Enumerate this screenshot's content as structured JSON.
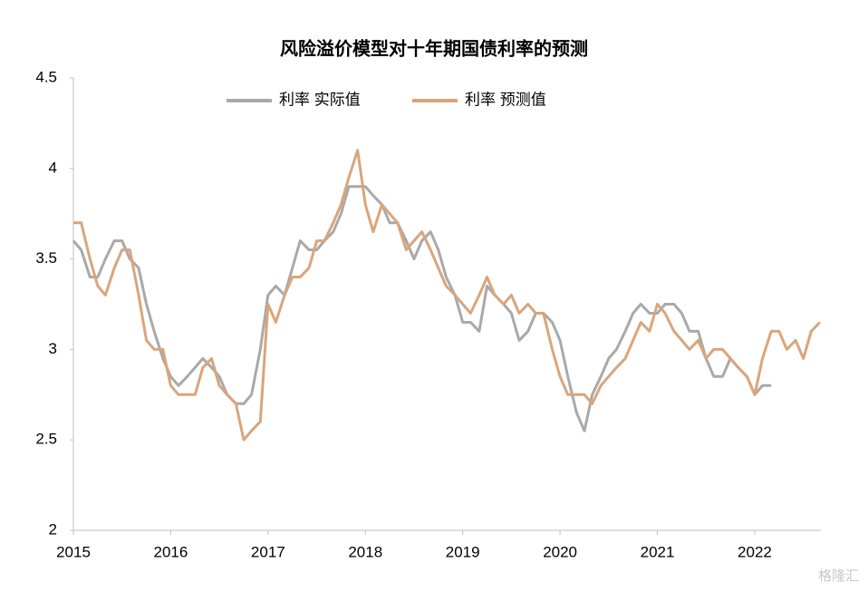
{
  "chart_data": {
    "type": "line",
    "title": "风险溢价模型对十年期国债利率的预测",
    "xlim": [
      2015,
      2022.68
    ],
    "xticks": [
      2015,
      2016,
      2017,
      2018,
      2019,
      2020,
      2021,
      2022
    ],
    "ylim": [
      2,
      4.5
    ],
    "yticks": [
      2,
      {
        "value": 2.5,
        "label": "2.5"
      },
      3,
      {
        "value": 3.5,
        "label": "3.5"
      },
      4,
      {
        "value": 4.5,
        "label": "4.5"
      }
    ],
    "grid": false,
    "legend": "top",
    "watermark": "格隆汇",
    "series": [
      {
        "name": "利率 实际值",
        "color": "#a9a9a9",
        "x": [
          2015,
          2015.08,
          2015.17,
          2015.25,
          2015.33,
          2015.42,
          2015.5,
          2015.58,
          2015.67,
          2015.75,
          2015.83,
          2015.92,
          2016,
          2016.08,
          2016.17,
          2016.25,
          2016.33,
          2016.42,
          2016.5,
          2016.58,
          2016.67,
          2016.75,
          2016.83,
          2016.92,
          2017,
          2017.08,
          2017.17,
          2017.25,
          2017.33,
          2017.42,
          2017.5,
          2017.58,
          2017.67,
          2017.75,
          2017.83,
          2017.92,
          2018,
          2018.08,
          2018.17,
          2018.25,
          2018.33,
          2018.42,
          2018.5,
          2018.58,
          2018.67,
          2018.75,
          2018.83,
          2018.92,
          2019,
          2019.08,
          2019.17,
          2019.25,
          2019.33,
          2019.42,
          2019.5,
          2019.58,
          2019.67,
          2019.75,
          2019.83,
          2019.92,
          2020,
          2020.08,
          2020.17,
          2020.25,
          2020.33,
          2020.42,
          2020.5,
          2020.58,
          2020.67,
          2020.75,
          2020.83,
          2020.92,
          2021,
          2021.08,
          2021.17,
          2021.25,
          2021.33,
          2021.42,
          2021.5,
          2021.58,
          2021.67,
          2021.75,
          2021.83,
          2021.92,
          2022,
          2022.08,
          2022.17
        ],
        "values": [
          3.6,
          3.55,
          3.4,
          3.4,
          3.5,
          3.6,
          3.6,
          3.5,
          3.45,
          3.25,
          3.1,
          2.95,
          2.85,
          2.8,
          2.85,
          2.9,
          2.95,
          2.9,
          2.85,
          2.75,
          2.7,
          2.7,
          2.75,
          3.0,
          3.3,
          3.35,
          3.3,
          3.45,
          3.6,
          3.55,
          3.55,
          3.6,
          3.65,
          3.75,
          3.9,
          3.9,
          3.9,
          3.85,
          3.8,
          3.7,
          3.7,
          3.6,
          3.5,
          3.6,
          3.65,
          3.55,
          3.4,
          3.3,
          3.15,
          3.15,
          3.1,
          3.35,
          3.3,
          3.25,
          3.2,
          3.05,
          3.1,
          3.2,
          3.2,
          3.15,
          3.05,
          2.85,
          2.65,
          2.55,
          2.75,
          2.85,
          2.95,
          3.0,
          3.1,
          3.2,
          3.25,
          3.2,
          3.2,
          3.25,
          3.25,
          3.2,
          3.1,
          3.1,
          2.95,
          2.85,
          2.85,
          2.95,
          2.9,
          2.85,
          2.75,
          2.8,
          2.8
        ]
      },
      {
        "name": "利率 预测值",
        "color": "#d9a57c",
        "x": [
          2015,
          2015.08,
          2015.17,
          2015.25,
          2015.33,
          2015.42,
          2015.5,
          2015.58,
          2015.67,
          2015.75,
          2015.83,
          2015.92,
          2016,
          2016.08,
          2016.17,
          2016.25,
          2016.33,
          2016.42,
          2016.5,
          2016.58,
          2016.67,
          2016.75,
          2016.83,
          2016.92,
          2017,
          2017.08,
          2017.17,
          2017.25,
          2017.33,
          2017.42,
          2017.5,
          2017.58,
          2017.67,
          2017.75,
          2017.83,
          2017.92,
          2018,
          2018.08,
          2018.17,
          2018.25,
          2018.33,
          2018.42,
          2018.5,
          2018.58,
          2018.67,
          2018.75,
          2018.83,
          2018.92,
          2019,
          2019.08,
          2019.17,
          2019.25,
          2019.33,
          2019.42,
          2019.5,
          2019.58,
          2019.67,
          2019.75,
          2019.83,
          2019.92,
          2020,
          2020.08,
          2020.17,
          2020.25,
          2020.33,
          2020.42,
          2020.5,
          2020.58,
          2020.67,
          2020.75,
          2020.83,
          2020.92,
          2021,
          2021.08,
          2021.17,
          2021.25,
          2021.33,
          2021.42,
          2021.5,
          2021.58,
          2021.67,
          2021.75,
          2021.83,
          2021.92,
          2022,
          2022.08,
          2022.17,
          2022.25,
          2022.33,
          2022.42,
          2022.5,
          2022.58,
          2022.67
        ],
        "values": [
          3.7,
          3.7,
          3.5,
          3.35,
          3.3,
          3.45,
          3.55,
          3.55,
          3.3,
          3.05,
          3.0,
          3.0,
          2.8,
          2.75,
          2.75,
          2.75,
          2.9,
          2.95,
          2.8,
          2.75,
          2.7,
          2.5,
          2.55,
          2.6,
          3.25,
          3.15,
          3.3,
          3.4,
          3.4,
          3.45,
          3.6,
          3.6,
          3.7,
          3.8,
          3.95,
          4.1,
          3.8,
          3.65,
          3.8,
          3.75,
          3.7,
          3.55,
          3.6,
          3.65,
          3.55,
          3.45,
          3.35,
          3.3,
          3.25,
          3.2,
          3.3,
          3.4,
          3.3,
          3.25,
          3.3,
          3.2,
          3.25,
          3.2,
          3.2,
          3.0,
          2.85,
          2.75,
          2.75,
          2.75,
          2.7,
          2.8,
          2.85,
          2.9,
          2.95,
          3.05,
          3.15,
          3.1,
          3.25,
          3.2,
          3.1,
          3.05,
          3.0,
          3.05,
          2.95,
          3.0,
          3.0,
          2.95,
          2.9,
          2.85,
          2.75,
          2.95,
          3.1,
          3.1,
          3.0,
          3.05,
          2.95,
          3.1,
          3.15
        ]
      }
    ]
  }
}
